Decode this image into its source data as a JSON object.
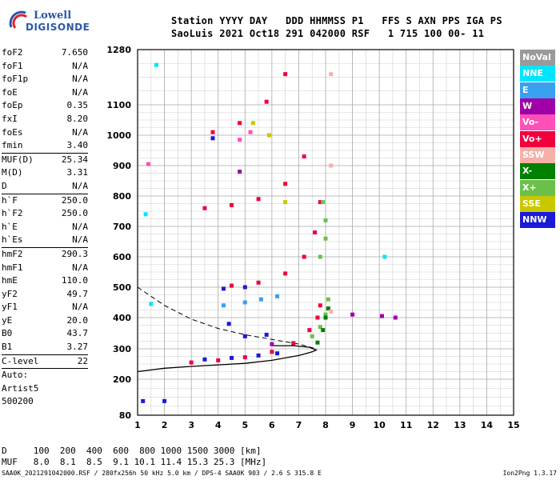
{
  "logo": {
    "line1": "Lowell",
    "line2": "DIGISONDE"
  },
  "header": {
    "line1": "Station YYYY DAY   DDD HHMMSS P1   FFS S AXN PPS IGA PS",
    "line2": "SaoLuis 2021 Oct18 291 042000 RSF   1 715 100 00- 11"
  },
  "params": [
    {
      "name": "foF2",
      "value": "7.650"
    },
    {
      "name": "foF1",
      "value": "N/A"
    },
    {
      "name": "foF1p",
      "value": "N/A"
    },
    {
      "name": "foE",
      "value": "N/A"
    },
    {
      "name": "foEp",
      "value": "0.35"
    },
    {
      "name": "fxI",
      "value": "8.20"
    },
    {
      "name": "foEs",
      "value": "N/A"
    },
    {
      "name": "fmin",
      "value": "3.40"
    },
    {
      "name": "MUF(D)",
      "value": "25.34"
    },
    {
      "name": "M(D)",
      "value": "3.31"
    },
    {
      "name": "D",
      "value": "N/A"
    },
    {
      "name": "h`F",
      "value": "250.0"
    },
    {
      "name": "h`F2",
      "value": "250.0"
    },
    {
      "name": "h`E",
      "value": "N/A"
    },
    {
      "name": "h`Es",
      "value": "N/A"
    },
    {
      "name": "hmF2",
      "value": "290.3"
    },
    {
      "name": "hmF1",
      "value": "N/A"
    },
    {
      "name": "hmE",
      "value": "110.0"
    },
    {
      "name": "yF2",
      "value": "49.7"
    },
    {
      "name": "yF1",
      "value": "N/A"
    },
    {
      "name": "yE",
      "value": "20.0"
    },
    {
      "name": "B0",
      "value": "43.7"
    },
    {
      "name": "B1",
      "value": "3.27"
    },
    {
      "name": "C-level",
      "value": "22"
    }
  ],
  "autoscaling": {
    "label": "Auto:",
    "line2": "Artist5",
    "line3": "500200"
  },
  "legend": [
    {
      "label": "NoVal",
      "color": "#9a9a9a"
    },
    {
      "label": "NNE",
      "color": "#00e5ff"
    },
    {
      "label": "E",
      "color": "#3aa0f0"
    },
    {
      "label": "W",
      "color": "#a000a8"
    },
    {
      "label": "Vo-",
      "color": "#ff4fb8"
    },
    {
      "label": "Vo+",
      "color": "#f0003c"
    },
    {
      "label": "SSW",
      "color": "#f5b0a8"
    },
    {
      "label": "X-",
      "color": "#008000"
    },
    {
      "label": "X+",
      "color": "#6cc04a"
    },
    {
      "label": "SSE",
      "color": "#c8c800"
    },
    {
      "label": "NNW",
      "color": "#1a1ad8"
    }
  ],
  "dmuf": {
    "line1": "D     100  200  400  600  800 1000 1500 3000 [km]",
    "line2": "MUF   8.0  8.1  8.5  9.1 10.1 11.4 15.3 25.3 [MHz]"
  },
  "footer": {
    "left": "SAA0K_2021291042000.RSF / 280fx256h 50 kHz 5.0 km / DPS-4 SAA0K 903 / 2.6 S 315.8 E",
    "right": "Ion2Png 1.3.17"
  },
  "chart_data": {
    "type": "scatter",
    "xlim": [
      1,
      15
    ],
    "ylim": [
      80,
      1280
    ],
    "x_ticks": [
      "1",
      "2",
      "3",
      "4",
      "5",
      "6",
      "7",
      "8",
      "9",
      "10",
      "11",
      "12",
      "13",
      "14",
      "15"
    ],
    "y_ticks": [
      "80",
      "200",
      "300",
      "400",
      "500",
      "600",
      "700",
      "800",
      "900",
      "1000",
      "1100",
      "1280"
    ],
    "y_tick_values": [
      80,
      200,
      300,
      400,
      500,
      600,
      700,
      800,
      900,
      1000,
      1100,
      1280
    ],
    "grid": true,
    "series": [
      {
        "name": "Vo+",
        "color": "#f0003c",
        "points": [
          [
            3.0,
            255
          ],
          [
            4.0,
            262
          ],
          [
            5.0,
            272
          ],
          [
            6.0,
            290
          ],
          [
            6.8,
            318
          ],
          [
            7.4,
            360
          ],
          [
            7.7,
            400
          ],
          [
            7.8,
            440
          ],
          [
            4.5,
            505
          ],
          [
            5.5,
            515
          ],
          [
            6.5,
            545
          ],
          [
            7.2,
            600
          ],
          [
            7.6,
            680
          ],
          [
            7.8,
            780
          ],
          [
            3.5,
            760
          ],
          [
            4.5,
            770
          ],
          [
            5.5,
            790
          ],
          [
            6.5,
            840
          ],
          [
            7.2,
            930
          ],
          [
            3.8,
            1010
          ],
          [
            4.8,
            1040
          ],
          [
            5.8,
            1110
          ],
          [
            6.5,
            1200
          ]
        ]
      },
      {
        "name": "X+",
        "color": "#6cc04a",
        "points": [
          [
            7.5,
            340
          ],
          [
            7.8,
            370
          ],
          [
            8.0,
            410
          ],
          [
            8.1,
            460
          ],
          [
            7.8,
            600
          ],
          [
            8.0,
            660
          ],
          [
            8.0,
            720
          ],
          [
            7.9,
            780
          ]
        ]
      },
      {
        "name": "X-",
        "color": "#008000",
        "points": [
          [
            7.7,
            320
          ],
          [
            7.9,
            360
          ],
          [
            8.0,
            400
          ],
          [
            8.1,
            430
          ]
        ]
      },
      {
        "name": "NNW",
        "color": "#1a1ad8",
        "points": [
          [
            3.5,
            265
          ],
          [
            4.5,
            270
          ],
          [
            5.5,
            278
          ],
          [
            6.2,
            285
          ],
          [
            4.4,
            380
          ],
          [
            5.0,
            340
          ],
          [
            5.8,
            345
          ],
          [
            4.2,
            495
          ],
          [
            5.0,
            500
          ],
          [
            3.8,
            990
          ],
          [
            1.2,
            127
          ],
          [
            2.0,
            127
          ]
        ]
      },
      {
        "name": "E",
        "color": "#3aa0f0",
        "points": [
          [
            4.2,
            440
          ],
          [
            5.0,
            450
          ],
          [
            5.6,
            460
          ],
          [
            6.2,
            470
          ]
        ]
      },
      {
        "name": "W",
        "color": "#a000a8",
        "points": [
          [
            9.0,
            410
          ],
          [
            10.1,
            405
          ],
          [
            10.6,
            400
          ],
          [
            6.0,
            315
          ],
          [
            4.8,
            880
          ]
        ]
      },
      {
        "name": "NNE",
        "color": "#00e5ff",
        "points": [
          [
            1.3,
            740
          ],
          [
            1.5,
            445
          ],
          [
            10.2,
            600
          ],
          [
            1.7,
            1230
          ]
        ]
      },
      {
        "name": "Vo-",
        "color": "#ff4fb8",
        "points": [
          [
            1.4,
            905
          ],
          [
            4.8,
            985
          ],
          [
            5.2,
            1010
          ]
        ]
      },
      {
        "name": "SSE",
        "color": "#c8c800",
        "points": [
          [
            5.3,
            1040
          ],
          [
            5.9,
            1000
          ],
          [
            6.5,
            780
          ]
        ]
      },
      {
        "name": "SSW",
        "color": "#f5b0a8",
        "points": [
          [
            8.2,
            420
          ],
          [
            8.2,
            900
          ],
          [
            8.2,
            1200
          ]
        ]
      }
    ],
    "profile_curve": {
      "points": [
        [
          1.0,
          225
        ],
        [
          2.0,
          236
        ],
        [
          3.0,
          242
        ],
        [
          4.0,
          247
        ],
        [
          5.0,
          252
        ],
        [
          6.0,
          262
        ],
        [
          7.0,
          278
        ],
        [
          7.5,
          290
        ],
        [
          7.65,
          296
        ],
        [
          7.4,
          305
        ],
        [
          6.8,
          310
        ],
        [
          6.0,
          310
        ]
      ]
    },
    "dashed_curve": {
      "points": [
        [
          1.0,
          500
        ],
        [
          1.5,
          470
        ],
        [
          2.0,
          440
        ],
        [
          3.0,
          395
        ],
        [
          4.0,
          365
        ],
        [
          5.0,
          345
        ],
        [
          6.0,
          330
        ],
        [
          7.0,
          315
        ],
        [
          7.65,
          300
        ]
      ]
    }
  }
}
